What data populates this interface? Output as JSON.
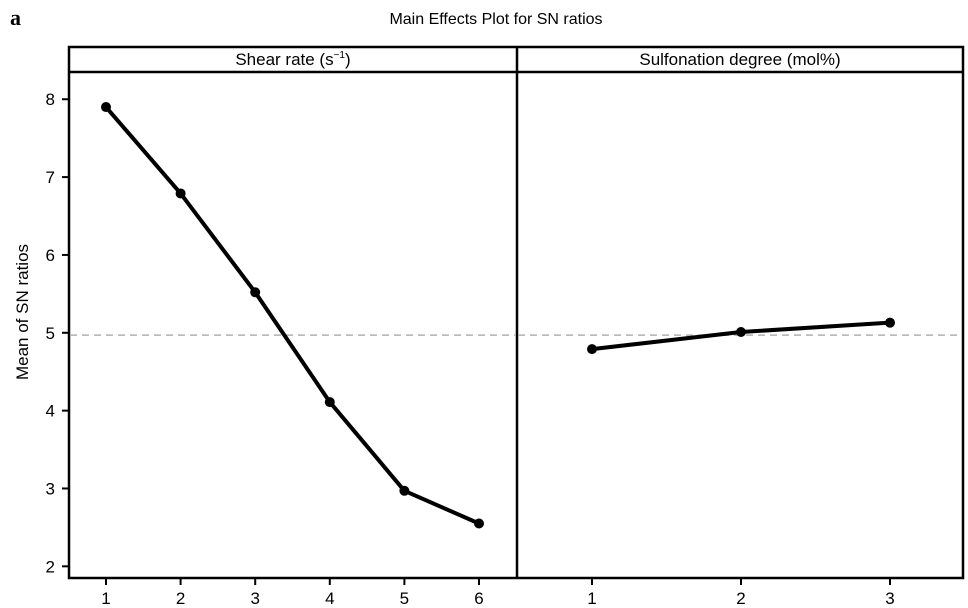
{
  "panel_letter": "a",
  "chart_data": {
    "type": "line",
    "title": "Main Effects Plot for SN ratios",
    "ylabel": "Mean of SN ratios",
    "ylim": [
      1.85,
      8.35
    ],
    "yticks": [
      2,
      3,
      4,
      5,
      6,
      7,
      8
    ],
    "reference_line": 4.97,
    "grid": false,
    "panels": [
      {
        "label": "Shear rate (s",
        "label_sup": "−1",
        "label_close": ")",
        "categories": [
          "1",
          "2",
          "3",
          "4",
          "5",
          "6"
        ],
        "values": [
          7.9,
          6.79,
          5.52,
          4.11,
          2.97,
          2.55
        ]
      },
      {
        "label": "Sulfonation degree (mol%)",
        "categories": [
          "1",
          "2",
          "3"
        ],
        "values": [
          4.79,
          5.01,
          5.13
        ]
      }
    ]
  },
  "colors": {
    "line": "#000000",
    "reference": "#b0b0b0",
    "frame": "#000000"
  }
}
